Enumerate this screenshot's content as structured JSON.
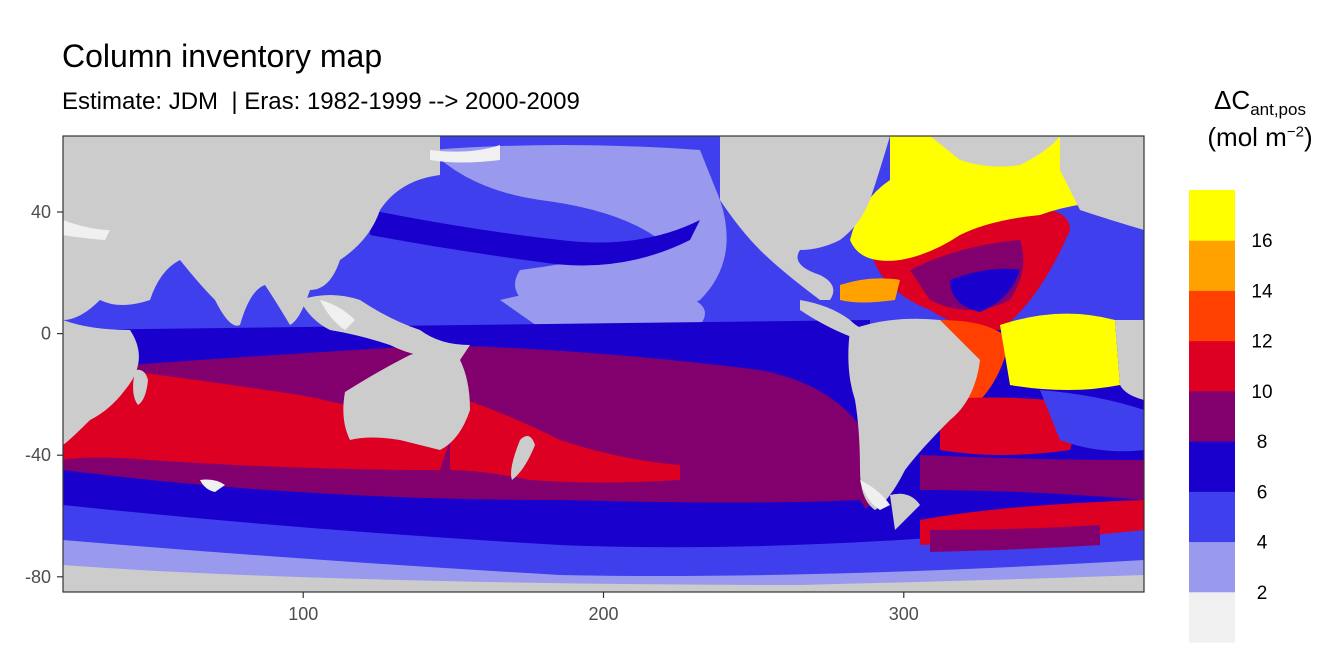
{
  "chart_data": {
    "type": "heatmap",
    "title": "Column inventory map",
    "subtitle": "Estimate: JDM  | Eras: 1982-1999 --> 2000-2009",
    "x_ticks": [
      100,
      200,
      300
    ],
    "y_ticks": [
      40,
      0,
      -40,
      -80
    ],
    "x_tick_labels": [
      "100",
      "200",
      "300"
    ],
    "y_tick_labels": [
      "40",
      "0",
      "-40",
      "-80"
    ],
    "xlim": [
      20,
      380
    ],
    "ylim": [
      -85,
      65
    ],
    "land_color": "#cccccc",
    "panel_border": "#333333",
    "legend": {
      "title_main": "ΔC",
      "title_sub": "ant,pos",
      "unit_pre": "(mol m",
      "unit_sup": "−2",
      "unit_post": ")",
      "breaks": [
        "16",
        "14",
        "12",
        "10",
        "8",
        "6",
        "4",
        "2"
      ],
      "bins": [
        {
          "range": "<2",
          "color": "#f0f0f0"
        },
        {
          "range": "2-4",
          "color": "#9999ee"
        },
        {
          "range": "4-6",
          "color": "#3f3fee"
        },
        {
          "range": "6-8",
          "color": "#1a00cc"
        },
        {
          "range": "8-10",
          "color": "#82006e"
        },
        {
          "range": "10-12",
          "color": "#dd0022"
        },
        {
          "range": "12-14",
          "color": "#ff4000"
        },
        {
          "range": "14-16",
          "color": "#ffa200"
        },
        {
          "range": ">16",
          "color": "#ffff00"
        }
      ]
    }
  }
}
